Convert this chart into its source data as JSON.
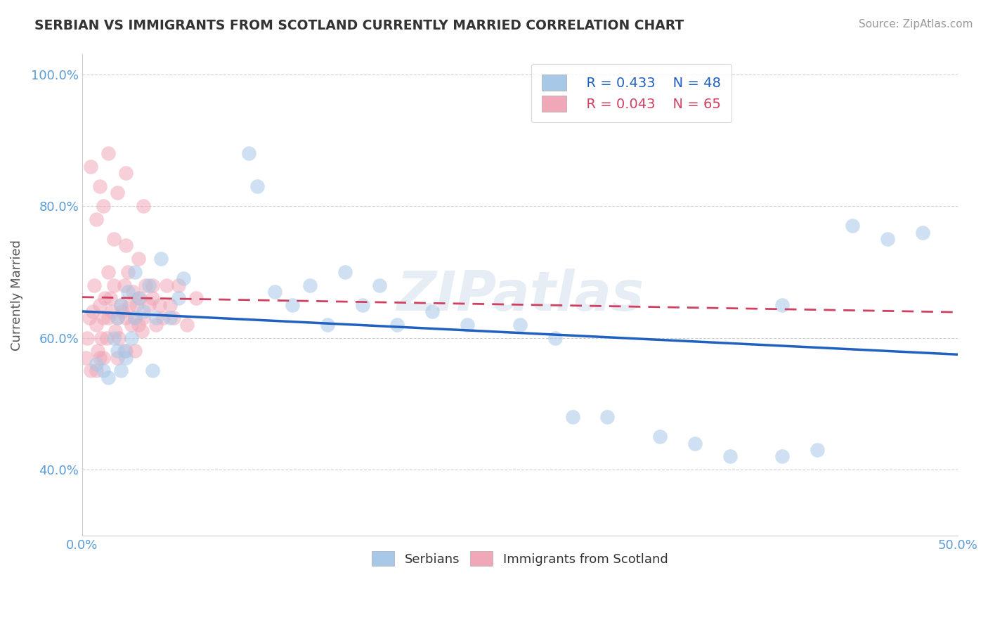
{
  "title": "SERBIAN VS IMMIGRANTS FROM SCOTLAND CURRENTLY MARRIED CORRELATION CHART",
  "source": "Source: ZipAtlas.com",
  "ylabel": "Currently Married",
  "xlim": [
    0.0,
    0.5
  ],
  "ylim": [
    0.3,
    1.03
  ],
  "xticks": [
    0.0,
    0.05,
    0.1,
    0.15,
    0.2,
    0.25,
    0.3,
    0.35,
    0.4,
    0.45,
    0.5
  ],
  "yticks": [
    0.4,
    0.6,
    0.8,
    1.0
  ],
  "ytick_labels": [
    "40.0%",
    "60.0%",
    "80.0%",
    "100.0%"
  ],
  "legend_blue_R": "R = 0.433",
  "legend_blue_N": "N = 48",
  "legend_pink_R": "R = 0.043",
  "legend_pink_N": "N = 65",
  "blue_color": "#a8c8e8",
  "pink_color": "#f0a8b8",
  "blue_line_color": "#2060c0",
  "pink_line_color": "#d04060",
  "grid_color": "#d0d0d0",
  "background_color": "#ffffff",
  "title_color": "#333333",
  "axis_label_color": "#5b9bd5",
  "blue_scatter_x": [
    0.008,
    0.012,
    0.015,
    0.018,
    0.02,
    0.02,
    0.022,
    0.022,
    0.024,
    0.025,
    0.026,
    0.028,
    0.03,
    0.03,
    0.032,
    0.035,
    0.038,
    0.04,
    0.042,
    0.045,
    0.05,
    0.055,
    0.058,
    0.095,
    0.1,
    0.11,
    0.12,
    0.13,
    0.14,
    0.15,
    0.16,
    0.17,
    0.18,
    0.2,
    0.22,
    0.25,
    0.27,
    0.28,
    0.3,
    0.33,
    0.35,
    0.37,
    0.4,
    0.4,
    0.42,
    0.44,
    0.46,
    0.48
  ],
  "blue_scatter_y": [
    0.56,
    0.55,
    0.54,
    0.6,
    0.58,
    0.63,
    0.55,
    0.65,
    0.58,
    0.57,
    0.67,
    0.6,
    0.63,
    0.7,
    0.66,
    0.64,
    0.68,
    0.55,
    0.63,
    0.72,
    0.63,
    0.66,
    0.69,
    0.88,
    0.83,
    0.67,
    0.65,
    0.68,
    0.62,
    0.7,
    0.65,
    0.68,
    0.62,
    0.64,
    0.62,
    0.62,
    0.6,
    0.48,
    0.48,
    0.45,
    0.44,
    0.42,
    0.65,
    0.42,
    0.43,
    0.77,
    0.75,
    0.76
  ],
  "pink_scatter_x": [
    0.002,
    0.003,
    0.004,
    0.005,
    0.006,
    0.007,
    0.008,
    0.008,
    0.009,
    0.01,
    0.01,
    0.011,
    0.012,
    0.012,
    0.013,
    0.014,
    0.015,
    0.015,
    0.016,
    0.017,
    0.018,
    0.019,
    0.02,
    0.02,
    0.021,
    0.022,
    0.023,
    0.024,
    0.025,
    0.025,
    0.026,
    0.027,
    0.028,
    0.029,
    0.03,
    0.03,
    0.031,
    0.032,
    0.033,
    0.034,
    0.035,
    0.036,
    0.038,
    0.04,
    0.042,
    0.044,
    0.046,
    0.048,
    0.05,
    0.052,
    0.055,
    0.06,
    0.065,
    0.008,
    0.012,
    0.018,
    0.025,
    0.032,
    0.04,
    0.005,
    0.01,
    0.02,
    0.015,
    0.025,
    0.035
  ],
  "pink_scatter_y": [
    0.57,
    0.6,
    0.63,
    0.55,
    0.64,
    0.68,
    0.55,
    0.62,
    0.58,
    0.57,
    0.65,
    0.6,
    0.63,
    0.57,
    0.66,
    0.6,
    0.63,
    0.7,
    0.66,
    0.64,
    0.68,
    0.61,
    0.57,
    0.63,
    0.6,
    0.65,
    0.64,
    0.68,
    0.63,
    0.58,
    0.7,
    0.65,
    0.62,
    0.67,
    0.63,
    0.58,
    0.65,
    0.62,
    0.66,
    0.61,
    0.63,
    0.68,
    0.65,
    0.66,
    0.62,
    0.65,
    0.63,
    0.68,
    0.65,
    0.63,
    0.68,
    0.62,
    0.66,
    0.78,
    0.8,
    0.75,
    0.74,
    0.72,
    0.68,
    0.86,
    0.83,
    0.82,
    0.88,
    0.85,
    0.8
  ]
}
